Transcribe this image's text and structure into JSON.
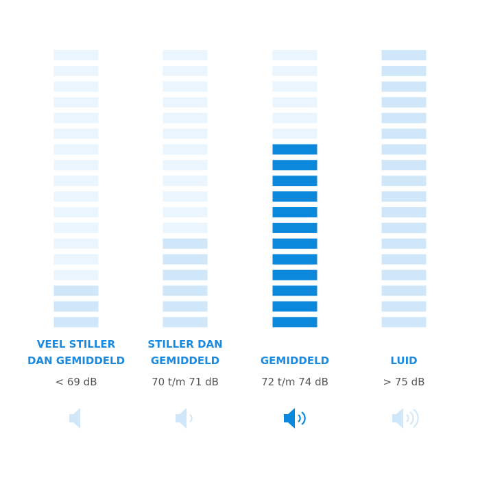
{
  "columns": [
    {
      "label": [
        "VEEL STILLER",
        "DAN GEMIDDELD"
      ],
      "range": "< 69 dB",
      "lit": 3,
      "color": "#cfe7f8"
    },
    {
      "label": [
        "STILLER DAN",
        "GEMIDDELD"
      ],
      "range": "70 t/m 71 dB",
      "lit": 6,
      "color": "#cfe7f8"
    },
    {
      "label": [
        "GEMIDDELD"
      ],
      "range": "72 t/m 74 dB",
      "lit": 12,
      "color": "#0b87dc"
    },
    {
      "label": [
        "LUID"
      ],
      "range": "> 75 dB",
      "lit": 18,
      "color": "#cfe7f8"
    }
  ],
  "bar_count": 18
}
